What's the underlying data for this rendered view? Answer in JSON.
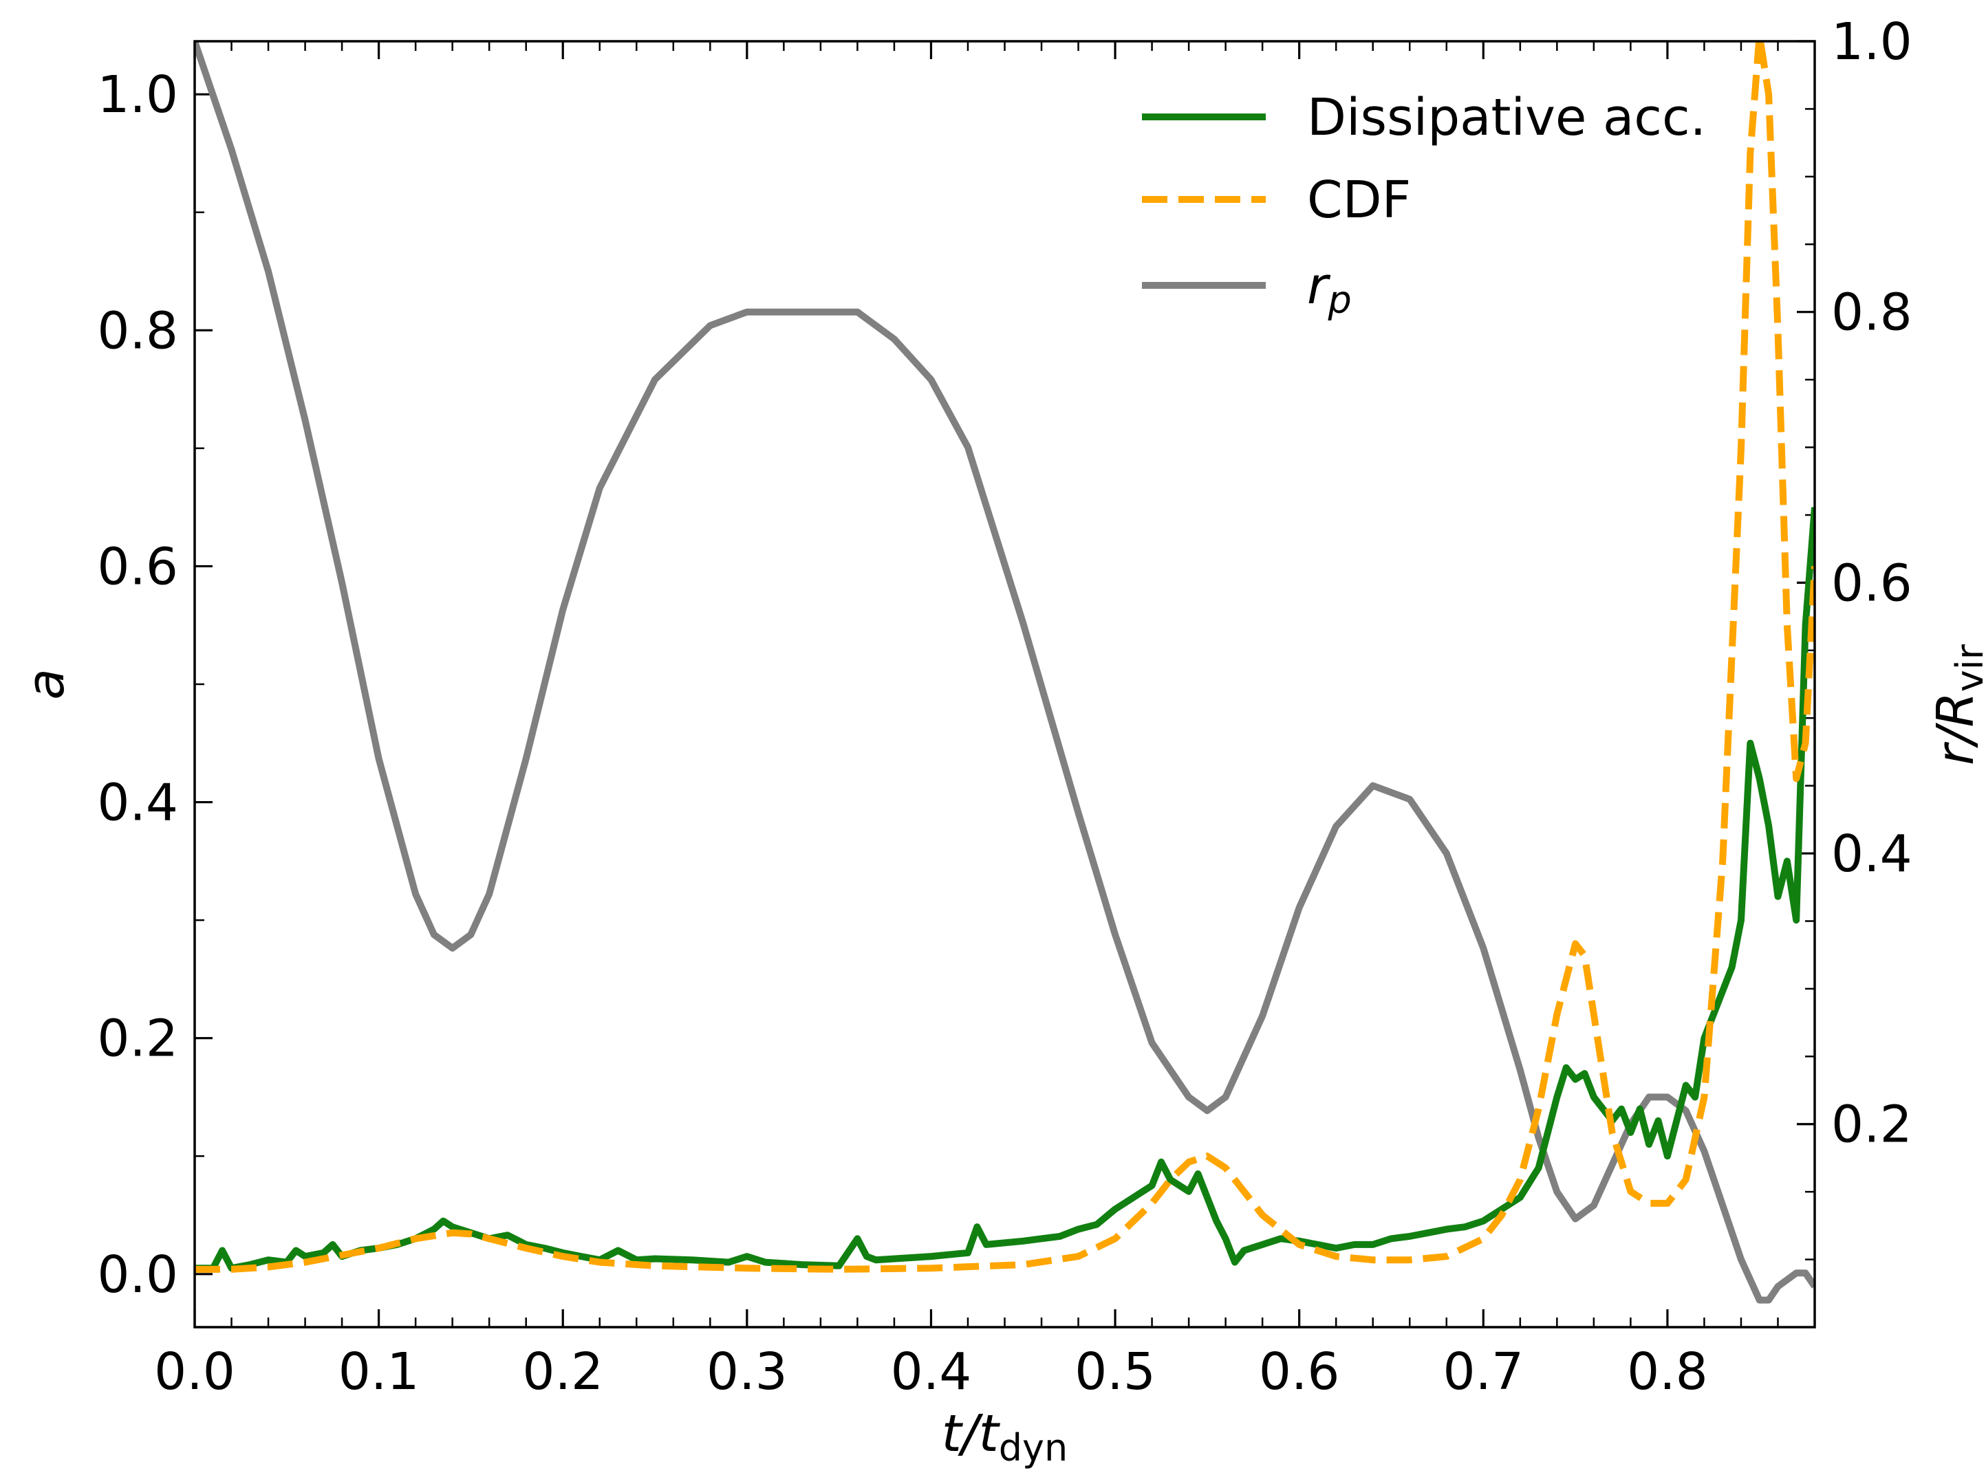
{
  "chart_data": {
    "type": "line",
    "xlabel": {
      "main": "t/t",
      "sub": "dyn"
    },
    "ylabel_left": "a",
    "ylabel_right": {
      "main": "r/R",
      "sub": "vir"
    },
    "xlim": [
      0.0,
      0.88
    ],
    "ylim_left": [
      -0.045,
      1.045
    ],
    "ylim_right": [
      0.05,
      1.0
    ],
    "x_ticks": [
      "0.0",
      "0.1",
      "0.2",
      "0.3",
      "0.4",
      "0.5",
      "0.6",
      "0.7",
      "0.8"
    ],
    "y_ticks_left": [
      "0.0",
      "0.2",
      "0.4",
      "0.6",
      "0.8",
      "1.0"
    ],
    "y_ticks_right": [
      "0.2",
      "0.4",
      "0.6",
      "0.8",
      "1.0"
    ],
    "legend": {
      "placement": "top-right",
      "entries": [
        {
          "label": "Dissipative acc.",
          "color": "#118011",
          "style": "solid"
        },
        {
          "label": "CDF",
          "color": "#ffa500",
          "style": "dashed"
        },
        {
          "label": "r",
          "sub": "p",
          "color": "#808080",
          "style": "solid"
        }
      ]
    },
    "series": [
      {
        "name": "Dissipative acc.",
        "axis": "left",
        "color": "#118011",
        "style": "solid",
        "x": [
          0.0,
          0.01,
          0.015,
          0.02,
          0.03,
          0.04,
          0.05,
          0.055,
          0.06,
          0.07,
          0.075,
          0.08,
          0.09,
          0.1,
          0.11,
          0.12,
          0.13,
          0.135,
          0.14,
          0.15,
          0.16,
          0.17,
          0.18,
          0.19,
          0.2,
          0.21,
          0.22,
          0.23,
          0.24,
          0.25,
          0.27,
          0.29,
          0.3,
          0.31,
          0.33,
          0.35,
          0.36,
          0.365,
          0.37,
          0.4,
          0.42,
          0.425,
          0.43,
          0.45,
          0.46,
          0.47,
          0.48,
          0.49,
          0.5,
          0.51,
          0.52,
          0.525,
          0.53,
          0.54,
          0.545,
          0.55,
          0.555,
          0.56,
          0.565,
          0.57,
          0.58,
          0.59,
          0.6,
          0.61,
          0.62,
          0.63,
          0.64,
          0.65,
          0.66,
          0.67,
          0.68,
          0.69,
          0.7,
          0.71,
          0.72,
          0.73,
          0.735,
          0.74,
          0.745,
          0.75,
          0.755,
          0.76,
          0.77,
          0.775,
          0.78,
          0.785,
          0.79,
          0.795,
          0.8,
          0.805,
          0.81,
          0.815,
          0.82,
          0.825,
          0.83,
          0.835,
          0.84,
          0.845,
          0.85,
          0.855,
          0.86,
          0.865,
          0.87,
          0.875,
          0.88
        ],
        "y": [
          0.005,
          0.005,
          0.02,
          0.005,
          0.008,
          0.012,
          0.01,
          0.02,
          0.015,
          0.018,
          0.025,
          0.015,
          0.02,
          0.022,
          0.025,
          0.03,
          0.038,
          0.045,
          0.04,
          0.035,
          0.03,
          0.033,
          0.025,
          0.022,
          0.018,
          0.015,
          0.012,
          0.02,
          0.012,
          0.013,
          0.012,
          0.01,
          0.015,
          0.01,
          0.008,
          0.007,
          0.03,
          0.015,
          0.012,
          0.015,
          0.018,
          0.04,
          0.025,
          0.028,
          0.03,
          0.032,
          0.038,
          0.042,
          0.055,
          0.065,
          0.075,
          0.095,
          0.08,
          0.07,
          0.085,
          0.065,
          0.045,
          0.03,
          0.01,
          0.02,
          0.025,
          0.03,
          0.028,
          0.025,
          0.022,
          0.025,
          0.025,
          0.03,
          0.032,
          0.035,
          0.038,
          0.04,
          0.045,
          0.055,
          0.065,
          0.09,
          0.12,
          0.15,
          0.175,
          0.165,
          0.17,
          0.15,
          0.13,
          0.14,
          0.12,
          0.14,
          0.11,
          0.13,
          0.1,
          0.13,
          0.16,
          0.15,
          0.2,
          0.22,
          0.24,
          0.26,
          0.3,
          0.45,
          0.42,
          0.38,
          0.32,
          0.35,
          0.3,
          0.55,
          0.65
        ]
      },
      {
        "name": "CDF",
        "axis": "left",
        "color": "#ffa500",
        "style": "dashed",
        "x": [
          0.0,
          0.02,
          0.04,
          0.06,
          0.08,
          0.1,
          0.12,
          0.14,
          0.15,
          0.16,
          0.18,
          0.2,
          0.22,
          0.25,
          0.3,
          0.35,
          0.4,
          0.45,
          0.48,
          0.5,
          0.52,
          0.53,
          0.54,
          0.55,
          0.56,
          0.57,
          0.58,
          0.6,
          0.62,
          0.64,
          0.66,
          0.68,
          0.7,
          0.71,
          0.72,
          0.73,
          0.74,
          0.75,
          0.755,
          0.76,
          0.77,
          0.78,
          0.79,
          0.8,
          0.81,
          0.82,
          0.83,
          0.84,
          0.845,
          0.85,
          0.855,
          0.86,
          0.865,
          0.87,
          0.875,
          0.88
        ],
        "y": [
          0.004,
          0.004,
          0.006,
          0.01,
          0.016,
          0.022,
          0.03,
          0.035,
          0.034,
          0.03,
          0.022,
          0.015,
          0.01,
          0.007,
          0.005,
          0.004,
          0.005,
          0.008,
          0.015,
          0.03,
          0.06,
          0.08,
          0.095,
          0.1,
          0.09,
          0.07,
          0.05,
          0.025,
          0.015,
          0.012,
          0.012,
          0.015,
          0.03,
          0.05,
          0.08,
          0.14,
          0.22,
          0.28,
          0.27,
          0.22,
          0.12,
          0.07,
          0.06,
          0.06,
          0.08,
          0.15,
          0.35,
          0.7,
          0.95,
          1.05,
          1.0,
          0.8,
          0.55,
          0.42,
          0.45,
          0.6
        ]
      },
      {
        "name": "r",
        "axis": "right",
        "color": "#808080",
        "style": "solid",
        "x": [
          0.0,
          0.02,
          0.04,
          0.06,
          0.08,
          0.1,
          0.12,
          0.13,
          0.14,
          0.15,
          0.16,
          0.18,
          0.2,
          0.22,
          0.25,
          0.28,
          0.3,
          0.32,
          0.34,
          0.36,
          0.38,
          0.4,
          0.42,
          0.45,
          0.48,
          0.5,
          0.52,
          0.54,
          0.55,
          0.56,
          0.58,
          0.6,
          0.62,
          0.64,
          0.66,
          0.68,
          0.7,
          0.72,
          0.73,
          0.74,
          0.75,
          0.76,
          0.77,
          0.78,
          0.79,
          0.8,
          0.81,
          0.82,
          0.83,
          0.84,
          0.85,
          0.855,
          0.86,
          0.87,
          0.875,
          0.88
        ],
        "y": [
          1.0,
          0.92,
          0.83,
          0.72,
          0.6,
          0.47,
          0.37,
          0.34,
          0.33,
          0.34,
          0.37,
          0.47,
          0.58,
          0.67,
          0.75,
          0.79,
          0.8,
          0.8,
          0.8,
          0.8,
          0.78,
          0.75,
          0.7,
          0.57,
          0.43,
          0.34,
          0.26,
          0.22,
          0.21,
          0.22,
          0.28,
          0.36,
          0.42,
          0.45,
          0.44,
          0.4,
          0.33,
          0.24,
          0.19,
          0.15,
          0.13,
          0.14,
          0.17,
          0.2,
          0.22,
          0.22,
          0.21,
          0.18,
          0.14,
          0.1,
          0.07,
          0.07,
          0.08,
          0.09,
          0.09,
          0.08
        ]
      }
    ]
  }
}
